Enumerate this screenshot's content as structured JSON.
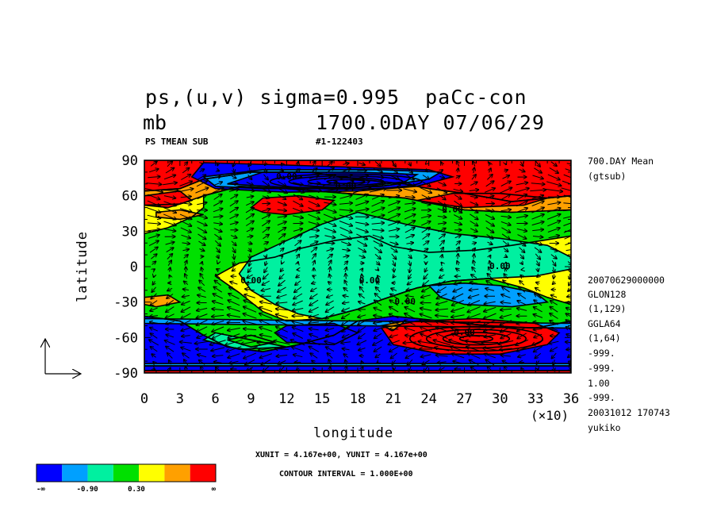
{
  "header": {
    "title": "ps,(u,v) sigma=0.995  paCc-con",
    "unit": "mb",
    "day_line": "1700.0DAY 07/06/29",
    "sub_left": "PS TMEAN SUB",
    "sub_mid": "#1-122403"
  },
  "right_info": {
    "lines": [
      "700.DAY Mean",
      "(gtsub)",
      "20070629000000",
      "GLON128",
      "(1,129)",
      "GGLA64",
      "(1,64)",
      "-999.",
      "-999.",
      "1.00",
      "-999.",
      "20031012 170743",
      "yukiko"
    ]
  },
  "footer": {
    "unit_line": "XUNIT = 4.167e+00, YUNIT = 4.167e+00",
    "contour_line": "CONTOUR INTERVAL = 1.000E+00"
  },
  "colorbar": {
    "colors": [
      "#0000ff",
      "#00a0ff",
      "#00f0a0",
      "#00e000",
      "#ffff00",
      "#ffa000",
      "#ff0000"
    ],
    "labels": [
      "-∞",
      "-0.90",
      "0.30",
      "∞"
    ]
  },
  "chart_data": {
    "type": "heatmap",
    "xlabel": "longitude",
    "ylabel": "latitude",
    "x_multiplier": "(×10)",
    "xlim": [
      0,
      36
    ],
    "ylim": [
      -90,
      90
    ],
    "x_ticks": [
      "0",
      "3",
      "6",
      "9",
      "12",
      "15",
      "18",
      "21",
      "24",
      "27",
      "30",
      "33",
      "36"
    ],
    "y_ticks": [
      "90",
      "60",
      "30",
      "0",
      "-30",
      "-60",
      "-90"
    ],
    "contour_labels": [
      "0.00",
      "0.00",
      "0.00",
      "0.00",
      "0.00",
      "0.00",
      "0.00",
      "0.00"
    ],
    "background_level": 4,
    "regions": [
      {
        "level": 6,
        "points": [
          [
            0,
            90
          ],
          [
            36,
            90
          ],
          [
            36,
            60
          ],
          [
            31,
            55
          ],
          [
            27,
            62
          ],
          [
            24,
            66
          ],
          [
            22,
            70
          ],
          [
            18,
            74
          ],
          [
            14,
            80
          ],
          [
            9,
            80
          ],
          [
            5,
            74
          ],
          [
            3,
            66
          ],
          [
            0,
            64
          ]
        ]
      },
      {
        "level": 5,
        "points": [
          [
            0,
            64
          ],
          [
            3,
            66
          ],
          [
            5,
            74
          ],
          [
            9,
            80
          ],
          [
            14,
            80
          ],
          [
            18,
            74
          ],
          [
            22,
            70
          ],
          [
            24,
            66
          ],
          [
            27,
            62
          ],
          [
            31,
            55
          ],
          [
            36,
            60
          ],
          [
            36,
            48
          ],
          [
            31,
            46
          ],
          [
            27,
            48
          ],
          [
            24,
            54
          ],
          [
            22,
            58
          ],
          [
            17,
            62
          ],
          [
            12,
            66
          ],
          [
            8,
            68
          ],
          [
            5,
            60
          ],
          [
            3,
            53
          ],
          [
            0,
            52
          ]
        ]
      },
      {
        "level": 3,
        "points": [
          [
            5,
            60
          ],
          [
            8,
            68
          ],
          [
            12,
            66
          ],
          [
            17,
            62
          ],
          [
            22,
            58
          ],
          [
            24,
            54
          ],
          [
            27,
            48
          ],
          [
            31,
            46
          ],
          [
            36,
            48
          ],
          [
            36,
            26
          ],
          [
            31,
            18
          ],
          [
            28,
            14
          ],
          [
            24,
            12
          ],
          [
            21,
            17
          ],
          [
            19,
            26
          ],
          [
            16,
            22
          ],
          [
            13,
            15
          ],
          [
            11,
            8
          ],
          [
            8,
            3
          ],
          [
            6,
            -8
          ],
          [
            8,
            -22
          ],
          [
            10,
            -38
          ],
          [
            12,
            -46
          ],
          [
            15,
            -44
          ],
          [
            18,
            -36
          ],
          [
            20,
            -28
          ],
          [
            23,
            -18
          ],
          [
            26,
            -12
          ],
          [
            29,
            -10
          ],
          [
            32,
            -18
          ],
          [
            34,
            -26
          ],
          [
            36,
            -32
          ],
          [
            36,
            -46
          ],
          [
            33,
            -52
          ],
          [
            29,
            -50
          ],
          [
            25,
            -46
          ],
          [
            21,
            -42
          ],
          [
            18,
            -46
          ],
          [
            16,
            -58
          ],
          [
            13,
            -66
          ],
          [
            10,
            -72
          ],
          [
            7,
            -68
          ],
          [
            5,
            -58
          ],
          [
            3,
            -46
          ],
          [
            0,
            -42
          ],
          [
            0,
            28
          ],
          [
            2,
            33
          ],
          [
            4,
            42
          ],
          [
            5,
            50
          ]
        ]
      },
      {
        "level": 2,
        "points": [
          [
            9,
            8
          ],
          [
            12,
            22
          ],
          [
            15,
            36
          ],
          [
            18,
            46
          ],
          [
            22,
            36
          ],
          [
            26,
            28
          ],
          [
            30,
            24
          ],
          [
            34,
            18
          ],
          [
            36,
            8
          ],
          [
            36,
            -2
          ],
          [
            33,
            -8
          ],
          [
            29,
            -10
          ],
          [
            26,
            -12
          ],
          [
            23,
            -18
          ],
          [
            20,
            -28
          ],
          [
            18,
            -36
          ],
          [
            15,
            -44
          ],
          [
            13,
            -40
          ],
          [
            11,
            -32
          ],
          [
            9,
            -20
          ],
          [
            8,
            -6
          ]
        ]
      },
      {
        "level": 1,
        "points": [
          [
            24,
            -16
          ],
          [
            27,
            -14
          ],
          [
            30,
            -16
          ],
          [
            33,
            -22
          ],
          [
            34,
            -30
          ],
          [
            31,
            -34
          ],
          [
            27,
            -32
          ],
          [
            25,
            -26
          ]
        ]
      },
      {
        "level": 0,
        "points": [
          [
            0,
            -42
          ],
          [
            3,
            -46
          ],
          [
            5,
            -58
          ],
          [
            7,
            -68
          ],
          [
            10,
            -72
          ],
          [
            13,
            -66
          ],
          [
            16,
            -58
          ],
          [
            18,
            -46
          ],
          [
            21,
            -42
          ],
          [
            25,
            -46
          ],
          [
            29,
            -50
          ],
          [
            33,
            -52
          ],
          [
            36,
            -46
          ],
          [
            36,
            -90
          ],
          [
            0,
            -90
          ]
        ]
      },
      {
        "level": 1,
        "points": [
          [
            0,
            -44
          ],
          [
            36,
            -48
          ],
          [
            36,
            -52
          ],
          [
            0,
            -48
          ]
        ]
      },
      {
        "level": 2,
        "points": [
          [
            6,
            -56
          ],
          [
            9,
            -62
          ],
          [
            12,
            -68
          ],
          [
            8,
            -70
          ],
          [
            5,
            -62
          ]
        ]
      },
      {
        "level": 3,
        "points": [
          [
            9,
            -58
          ],
          [
            11,
            -64
          ],
          [
            9,
            -68
          ],
          [
            7,
            -62
          ]
        ]
      },
      {
        "level": 0,
        "points": [
          [
            12,
            -50
          ],
          [
            16,
            -48
          ],
          [
            18,
            -56
          ],
          [
            16,
            -66
          ],
          [
            12,
            -64
          ],
          [
            11,
            -56
          ]
        ]
      },
      {
        "level": 6,
        "points": [
          [
            20,
            -52
          ],
          [
            23,
            -46
          ],
          [
            28,
            -44
          ],
          [
            33,
            -48
          ],
          [
            35,
            -56
          ],
          [
            34,
            -66
          ],
          [
            30,
            -74
          ],
          [
            25,
            -74
          ],
          [
            21,
            -66
          ]
        ]
      },
      {
        "level": 5,
        "points": [
          [
            20,
            -50
          ],
          [
            22,
            -46
          ],
          [
            21,
            -54
          ]
        ]
      },
      {
        "level": 0,
        "points": [
          [
            5,
            88
          ],
          [
            12,
            86
          ],
          [
            18,
            84
          ],
          [
            24,
            82
          ],
          [
            26,
            76
          ],
          [
            23,
            68
          ],
          [
            18,
            64
          ],
          [
            12,
            63
          ],
          [
            6,
            66
          ],
          [
            4,
            76
          ]
        ]
      },
      {
        "level": 1,
        "points": [
          [
            6,
            68
          ],
          [
            10,
            66
          ],
          [
            16,
            66
          ],
          [
            20,
            68
          ],
          [
            24,
            74
          ],
          [
            25,
            80
          ],
          [
            20,
            82
          ],
          [
            10,
            82
          ],
          [
            5,
            76
          ]
        ]
      },
      {
        "level": 0,
        "points": [
          [
            7,
            70
          ],
          [
            12,
            67
          ],
          [
            18,
            67
          ],
          [
            22,
            72
          ],
          [
            23,
            78
          ],
          [
            18,
            80
          ],
          [
            10,
            80
          ]
        ]
      },
      {
        "level": 6,
        "points": [
          [
            9,
            50
          ],
          [
            10,
            58
          ],
          [
            13,
            60
          ],
          [
            16,
            56
          ],
          [
            15,
            48
          ],
          [
            12,
            44
          ],
          [
            10,
            46
          ]
        ]
      },
      {
        "level": 6,
        "points": [
          [
            23,
            56
          ],
          [
            26,
            62
          ],
          [
            30,
            62
          ],
          [
            34,
            58
          ],
          [
            32,
            52
          ],
          [
            27,
            50
          ]
        ]
      },
      {
        "level": 6,
        "points": [
          [
            0,
            60
          ],
          [
            3,
            64
          ],
          [
            4,
            56
          ],
          [
            2,
            50
          ],
          [
            0,
            52
          ]
        ]
      },
      {
        "level": 5,
        "points": [
          [
            1,
            46
          ],
          [
            3,
            48
          ],
          [
            5,
            44
          ],
          [
            3,
            40
          ],
          [
            1,
            42
          ]
        ]
      },
      {
        "level": 5,
        "points": [
          [
            0,
            -26
          ],
          [
            2,
            -24
          ],
          [
            3,
            -30
          ],
          [
            1,
            -34
          ],
          [
            0,
            -32
          ]
        ]
      },
      {
        "level": 6,
        "points": [
          [
            0,
            -90
          ],
          [
            36,
            -90
          ],
          [
            36,
            -88
          ],
          [
            0,
            -88
          ]
        ]
      },
      {
        "level": 0,
        "points": [
          [
            0,
            -88
          ],
          [
            36,
            -88
          ],
          [
            36,
            -84
          ],
          [
            0,
            -84
          ]
        ]
      },
      {
        "level": 1,
        "points": [
          [
            0,
            -84
          ],
          [
            36,
            -84
          ],
          [
            36,
            -82
          ],
          [
            0,
            -82
          ]
        ]
      }
    ]
  }
}
